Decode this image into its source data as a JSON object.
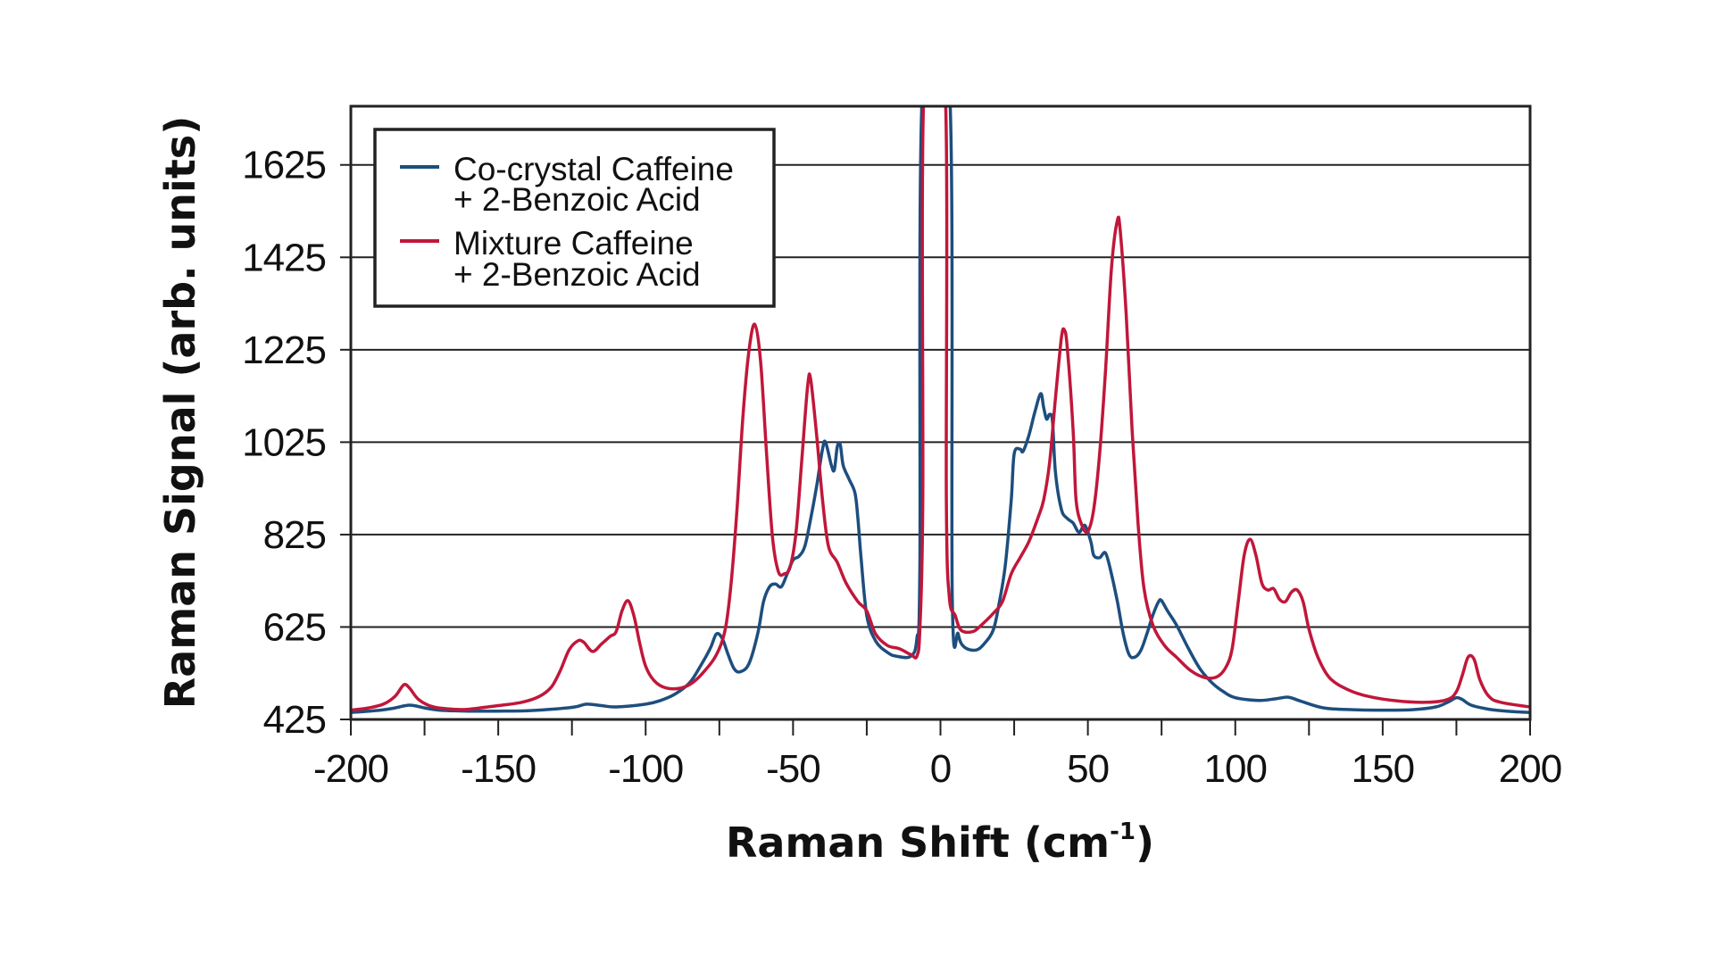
{
  "chart_data": {
    "type": "line",
    "xlabel": "Raman Shift (cm",
    "xlabel_sup": "-1",
    "xlabel_end": ")",
    "ylabel": "Raman Signal (arb. units)",
    "xlim": [
      -200,
      200
    ],
    "ylim": [
      425,
      1752
    ],
    "x_ticks": [
      -200,
      -150,
      -100,
      -50,
      0,
      50,
      100,
      150,
      200
    ],
    "x_tick_labels": [
      "-200",
      "-150",
      "-100",
      "-50",
      "0",
      "50",
      "100",
      "150",
      "200"
    ],
    "y_ticks": [
      425,
      625,
      825,
      1025,
      1225,
      1425,
      1625
    ],
    "y_tick_labels": [
      "425",
      "625",
      "825",
      "1025",
      "1225",
      "1425",
      "1625"
    ],
    "grid": "horizontal",
    "legend_position": "top-left",
    "series": [
      {
        "name": "Co-crystal Caffeine + 2-Benzoic Acid",
        "legend_lines": [
          "Co-crystal Caffeine",
          "+ 2-Benzoic Acid"
        ],
        "color": "#1d4e7e",
        "points": [
          [
            -200,
            440
          ],
          [
            -190,
            445
          ],
          [
            -185,
            450
          ],
          [
            -180,
            456
          ],
          [
            -175,
            450
          ],
          [
            -170,
            445
          ],
          [
            -160,
            443
          ],
          [
            -150,
            443
          ],
          [
            -140,
            444
          ],
          [
            -130,
            448
          ],
          [
            -124,
            452
          ],
          [
            -120,
            458
          ],
          [
            -115,
            455
          ],
          [
            -110,
            452
          ],
          [
            -100,
            458
          ],
          [
            -95,
            466
          ],
          [
            -90,
            480
          ],
          [
            -85,
            505
          ],
          [
            -81,
            545
          ],
          [
            -78,
            580
          ],
          [
            -76,
            610
          ],
          [
            -74,
            600
          ],
          [
            -72,
            565
          ],
          [
            -70,
            535
          ],
          [
            -68,
            528
          ],
          [
            -65,
            545
          ],
          [
            -62,
            610
          ],
          [
            -60,
            680
          ],
          [
            -58,
            712
          ],
          [
            -56,
            718
          ],
          [
            -54,
            712
          ],
          [
            -52,
            740
          ],
          [
            -50,
            770
          ],
          [
            -48,
            778
          ],
          [
            -46,
            800
          ],
          [
            -44,
            860
          ],
          [
            -42,
            930
          ],
          [
            -40,
            1010
          ],
          [
            -39,
            1025
          ],
          [
            -37,
            975
          ],
          [
            -36,
            965
          ],
          [
            -35,
            1015
          ],
          [
            -34,
            1020
          ],
          [
            -33,
            975
          ],
          [
            -31,
            945
          ],
          [
            -29,
            915
          ],
          [
            -28,
            860
          ],
          [
            -27,
            780
          ],
          [
            -25,
            650
          ],
          [
            -22,
            595
          ],
          [
            -18,
            570
          ],
          [
            -15,
            562
          ],
          [
            -10,
            562
          ],
          [
            -8,
            600
          ],
          [
            -7,
            750
          ],
          [
            -6,
            1800
          ],
          [
            3,
            1800
          ],
          [
            4,
            690
          ],
          [
            6,
            610
          ],
          [
            8,
            582
          ],
          [
            12,
            575
          ],
          [
            15,
            590
          ],
          [
            18,
            620
          ],
          [
            20,
            680
          ],
          [
            22,
            760
          ],
          [
            24,
            900
          ],
          [
            25,
            1000
          ],
          [
            27,
            1010
          ],
          [
            28,
            1005
          ],
          [
            30,
            1040
          ],
          [
            32,
            1090
          ],
          [
            34,
            1130
          ],
          [
            35,
            1100
          ],
          [
            36,
            1075
          ],
          [
            37,
            1085
          ],
          [
            38,
            1070
          ],
          [
            39,
            960
          ],
          [
            41,
            880
          ],
          [
            43,
            860
          ],
          [
            45,
            850
          ],
          [
            47,
            830
          ],
          [
            49,
            845
          ],
          [
            51,
            810
          ],
          [
            52,
            780
          ],
          [
            54,
            775
          ],
          [
            56,
            785
          ],
          [
            58,
            740
          ],
          [
            60,
            680
          ],
          [
            62,
            610
          ],
          [
            64,
            565
          ],
          [
            66,
            560
          ],
          [
            68,
            575
          ],
          [
            70,
            610
          ],
          [
            72,
            650
          ],
          [
            74,
            680
          ],
          [
            75,
            682
          ],
          [
            77,
            660
          ],
          [
            80,
            630
          ],
          [
            84,
            580
          ],
          [
            88,
            535
          ],
          [
            92,
            505
          ],
          [
            96,
            485
          ],
          [
            100,
            472
          ],
          [
            108,
            466
          ],
          [
            114,
            470
          ],
          [
            118,
            473
          ],
          [
            122,
            465
          ],
          [
            130,
            450
          ],
          [
            140,
            446
          ],
          [
            150,
            445
          ],
          [
            160,
            446
          ],
          [
            168,
            452
          ],
          [
            172,
            462
          ],
          [
            175,
            472
          ],
          [
            177,
            468
          ],
          [
            180,
            456
          ],
          [
            186,
            447
          ],
          [
            192,
            443
          ],
          [
            200,
            440
          ]
        ]
      },
      {
        "name": "Mixture Caffeine + 2-Benzoic Acid",
        "legend_lines": [
          "Mixture Caffeine",
          "+ 2-Benzoic Acid"
        ],
        "color": "#c0173a",
        "points": [
          [
            -200,
            445
          ],
          [
            -194,
            450
          ],
          [
            -189,
            458
          ],
          [
            -185,
            475
          ],
          [
            -182,
            500
          ],
          [
            -180,
            492
          ],
          [
            -177,
            468
          ],
          [
            -172,
            452
          ],
          [
            -165,
            447
          ],
          [
            -160,
            447
          ],
          [
            -150,
            455
          ],
          [
            -142,
            462
          ],
          [
            -136,
            475
          ],
          [
            -132,
            495
          ],
          [
            -129,
            530
          ],
          [
            -126,
            575
          ],
          [
            -123,
            595
          ],
          [
            -121,
            592
          ],
          [
            -118,
            572
          ],
          [
            -115,
            588
          ],
          [
            -112,
            605
          ],
          [
            -110,
            615
          ],
          [
            -108,
            660
          ],
          [
            -106,
            682
          ],
          [
            -104,
            650
          ],
          [
            -102,
            590
          ],
          [
            -100,
            540
          ],
          [
            -97,
            508
          ],
          [
            -93,
            493
          ],
          [
            -88,
            493
          ],
          [
            -84,
            505
          ],
          [
            -80,
            530
          ],
          [
            -76,
            565
          ],
          [
            -73,
            620
          ],
          [
            -71,
            720
          ],
          [
            -69,
            880
          ],
          [
            -67,
            1080
          ],
          [
            -65,
            1220
          ],
          [
            -63,
            1280
          ],
          [
            -61,
            1200
          ],
          [
            -59,
            1000
          ],
          [
            -57,
            820
          ],
          [
            -55,
            745
          ],
          [
            -53,
            740
          ],
          [
            -51,
            755
          ],
          [
            -49,
            830
          ],
          [
            -47,
            990
          ],
          [
            -45,
            1150
          ],
          [
            -44,
            1160
          ],
          [
            -42,
            1040
          ],
          [
            -40,
            900
          ],
          [
            -38,
            800
          ],
          [
            -35,
            765
          ],
          [
            -32,
            720
          ],
          [
            -28,
            680
          ],
          [
            -25,
            660
          ],
          [
            -22,
            610
          ],
          [
            -18,
            585
          ],
          [
            -14,
            578
          ],
          [
            -10,
            565
          ],
          [
            -8,
            562
          ],
          [
            -7,
            620
          ],
          [
            -6,
            900
          ],
          [
            -5.5,
            1800
          ],
          [
            1.5,
            1800
          ],
          [
            2,
            900
          ],
          [
            3,
            690
          ],
          [
            5,
            650
          ],
          [
            7,
            618
          ],
          [
            11,
            615
          ],
          [
            14,
            630
          ],
          [
            18,
            655
          ],
          [
            21,
            680
          ],
          [
            24,
            740
          ],
          [
            27,
            775
          ],
          [
            30,
            810
          ],
          [
            33,
            860
          ],
          [
            35,
            900
          ],
          [
            37,
            980
          ],
          [
            39,
            1120
          ],
          [
            41,
            1250
          ],
          [
            42,
            1268
          ],
          [
            43,
            1230
          ],
          [
            45,
            1050
          ],
          [
            46,
            900
          ],
          [
            48,
            845
          ],
          [
            50,
            832
          ],
          [
            52,
            880
          ],
          [
            54,
            1000
          ],
          [
            56,
            1180
          ],
          [
            58,
            1400
          ],
          [
            60,
            1505
          ],
          [
            61,
            1480
          ],
          [
            63,
            1300
          ],
          [
            65,
            1050
          ],
          [
            67,
            850
          ],
          [
            69,
            710
          ],
          [
            72,
            630
          ],
          [
            76,
            585
          ],
          [
            80,
            560
          ],
          [
            85,
            530
          ],
          [
            90,
            515
          ],
          [
            94,
            518
          ],
          [
            97,
            540
          ],
          [
            99,
            580
          ],
          [
            101,
            680
          ],
          [
            103,
            780
          ],
          [
            105,
            815
          ],
          [
            107,
            780
          ],
          [
            109,
            720
          ],
          [
            111,
            705
          ],
          [
            113,
            708
          ],
          [
            115,
            685
          ],
          [
            117,
            680
          ],
          [
            119,
            700
          ],
          [
            121,
            705
          ],
          [
            123,
            680
          ],
          [
            125,
            620
          ],
          [
            128,
            560
          ],
          [
            132,
            515
          ],
          [
            138,
            490
          ],
          [
            145,
            475
          ],
          [
            155,
            465
          ],
          [
            165,
            462
          ],
          [
            172,
            468
          ],
          [
            175,
            485
          ],
          [
            177,
            520
          ],
          [
            179,
            560
          ],
          [
            181,
            555
          ],
          [
            183,
            510
          ],
          [
            186,
            475
          ],
          [
            190,
            462
          ],
          [
            200,
            452
          ]
        ]
      }
    ]
  }
}
